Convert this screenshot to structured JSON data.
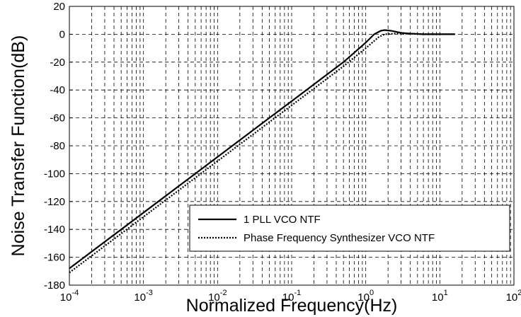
{
  "chart_data": {
    "type": "line",
    "xlabel": "Normalized Frequency(Hz)",
    "ylabel": "Noise Transfer Function(dB)",
    "xscale": "log",
    "xlim": [
      0.0001,
      100
    ],
    "ylim": [
      -180,
      20
    ],
    "xticks": [
      {
        "value": 0.0001,
        "label": "10",
        "exponent": "-4"
      },
      {
        "value": 0.001,
        "label": "10",
        "exponent": "-3"
      },
      {
        "value": 0.01,
        "label": "10",
        "exponent": "-2"
      },
      {
        "value": 0.1,
        "label": "10",
        "exponent": "-1"
      },
      {
        "value": 1,
        "label": "10",
        "exponent": "0"
      },
      {
        "value": 10,
        "label": "10",
        "exponent": "1"
      },
      {
        "value": 100,
        "label": "10",
        "exponent": "2"
      }
    ],
    "xminorticks": [
      0.0002,
      0.0003,
      0.0004,
      0.0005,
      0.0006,
      0.0007,
      0.0008,
      0.0009,
      0.002,
      0.003,
      0.004,
      0.005,
      0.006,
      0.007,
      0.008,
      0.009,
      0.02,
      0.03,
      0.04,
      0.05,
      0.06,
      0.07,
      0.08,
      0.09,
      0.2,
      0.3,
      0.4,
      0.5,
      0.6,
      0.7,
      0.8,
      0.9,
      2,
      3,
      4,
      5,
      6,
      7,
      8,
      9,
      20,
      30,
      40,
      50,
      60,
      70,
      80,
      90
    ],
    "yticks": [
      -180,
      -160,
      -140,
      -120,
      -100,
      -80,
      -60,
      -40,
      -20,
      0,
      20
    ],
    "grid": true,
    "legend": "lower right",
    "series": [
      {
        "name": "1 PLL VCO NTF",
        "color": "#000000",
        "style": "solid",
        "x": [
          0.0001,
          0.001,
          0.01,
          0.1,
          0.5,
          1,
          1.3,
          1.6,
          1.8,
          2.2,
          3,
          4,
          6,
          10,
          16
        ],
        "values": [
          -168,
          -128,
          -88,
          -48,
          -20,
          -6,
          0,
          2.5,
          3,
          2.5,
          1,
          0.5,
          0,
          0,
          0
        ]
      },
      {
        "name": "Phase Frequency Synthesizer VCO NTF",
        "color": "#000000",
        "style": "dotted",
        "x": [
          0.0001,
          0.001,
          0.01,
          0.1,
          0.5,
          1,
          1.5,
          1.8,
          2.5,
          4,
          10,
          16
        ],
        "values": [
          -171,
          -131,
          -91,
          -51,
          -23,
          -10,
          -2,
          0,
          0.5,
          0.3,
          0,
          0
        ]
      }
    ]
  }
}
